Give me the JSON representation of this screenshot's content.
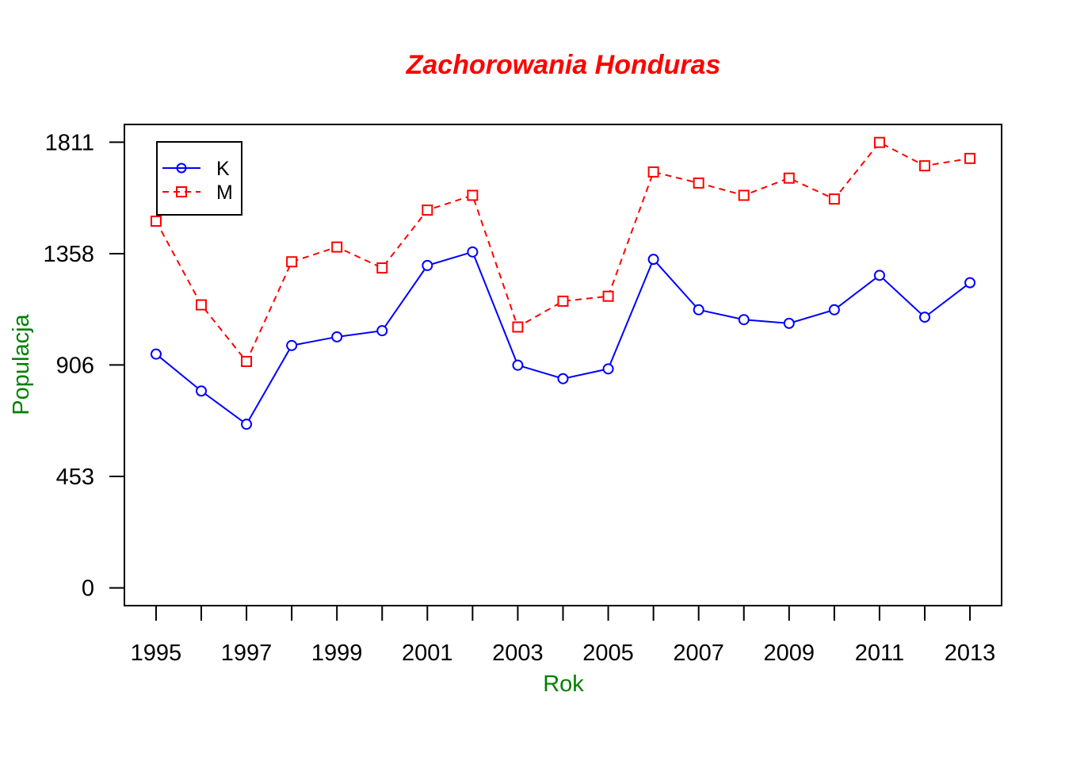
{
  "chart_data": {
    "type": "line",
    "title": "Zachorowania Honduras",
    "xlabel": "Rok",
    "ylabel": "Populacja",
    "x": [
      1995,
      1996,
      1997,
      1998,
      1999,
      2000,
      2001,
      2002,
      2003,
      2004,
      2005,
      2006,
      2007,
      2008,
      2009,
      2010,
      2011,
      2012,
      2013
    ],
    "x_tick_labels": [
      "1995",
      "1997",
      "1999",
      "2001",
      "2003",
      "2005",
      "2007",
      "2009",
      "2011",
      "2013"
    ],
    "y_ticks": [
      0,
      453,
      906,
      1358,
      1811
    ],
    "y_tick_labels": [
      "0",
      "453",
      "906",
      "1358",
      "1811"
    ],
    "xlim": [
      1994.3,
      2013.7
    ],
    "ylim": [
      -72,
      1883
    ],
    "grid": false,
    "legend_position": "top-left",
    "series": [
      {
        "name": "K",
        "color": "#0000ff",
        "line_style": "solid",
        "marker": "circle",
        "values": [
          950,
          800,
          665,
          985,
          1020,
          1045,
          1310,
          1365,
          905,
          850,
          890,
          1335,
          1130,
          1090,
          1075,
          1130,
          1270,
          1100,
          1240
        ]
      },
      {
        "name": "M",
        "color": "#ff0000",
        "line_style": "dashed",
        "marker": "square",
        "values": [
          1490,
          1150,
          920,
          1325,
          1385,
          1300,
          1535,
          1595,
          1060,
          1165,
          1185,
          1690,
          1645,
          1595,
          1665,
          1580,
          1810,
          1715,
          1745
        ]
      }
    ]
  },
  "colors": {
    "title": "#ff0000",
    "axis_labels": "#008000",
    "axes": "#000000"
  }
}
